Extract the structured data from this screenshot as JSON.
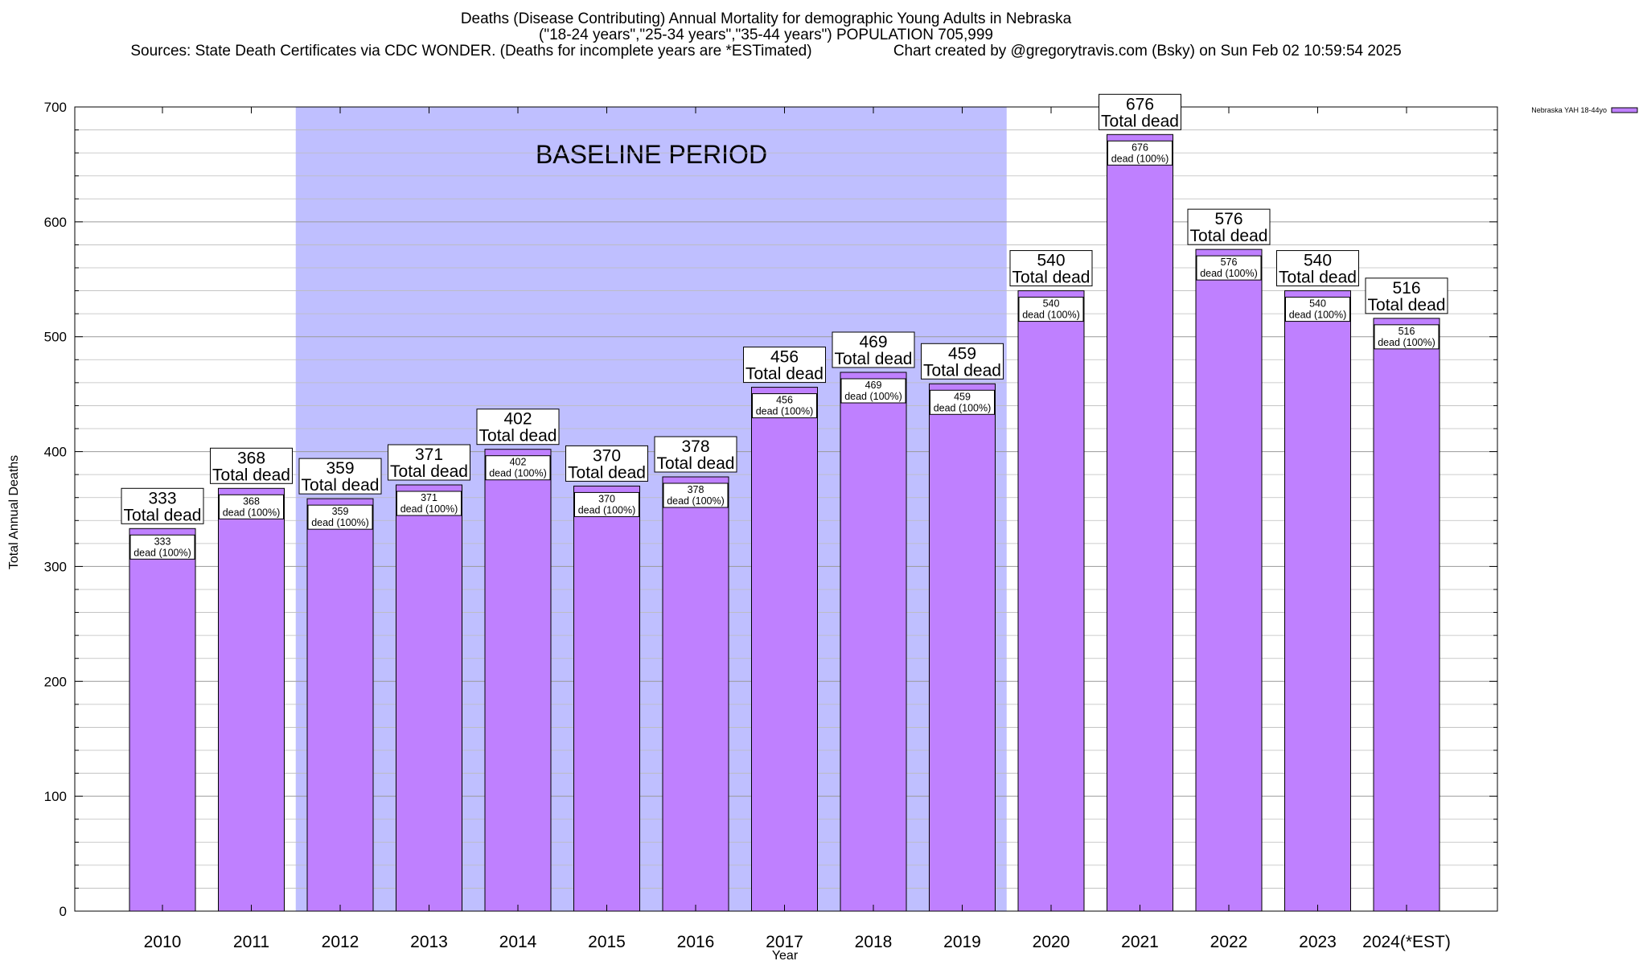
{
  "chart_data": {
    "type": "bar",
    "title": "Deaths (Disease Contributing) Annual Mortality for demographic Young Adults in Nebraska",
    "subtitle": "(\"18-24 years\",\"25-34 years\",\"35-44 years\") POPULATION 705,999",
    "sources": "Sources: State Death Certificates via CDC WONDER. (Deaths for incomplete years are *ESTimated)",
    "credit": "Chart created by @gregorytravis.com (Bsky) on Sun Feb 02 10:59:54 2025",
    "xlabel": "Year",
    "ylabel": "Total Annual Deaths",
    "ylim": [
      0,
      700
    ],
    "yticks": [
      0,
      100,
      200,
      300,
      400,
      500,
      600,
      700
    ],
    "grid": true,
    "legend_position": "top-right",
    "categories": [
      "2010",
      "2011",
      "2012",
      "2013",
      "2014",
      "2015",
      "2016",
      "2017",
      "2018",
      "2019",
      "2020",
      "2021",
      "2022",
      "2023",
      "2024(*EST)"
    ],
    "series": [
      {
        "name": "Nebraska YAH 18-44yo",
        "color": "#bf80ff",
        "values": [
          333,
          368,
          359,
          371,
          402,
          370,
          378,
          456,
          469,
          459,
          540,
          676,
          576,
          540,
          516
        ]
      }
    ],
    "total_label_suffix": "Total dead",
    "bar_label_suffix": "dead (100%)",
    "baseline_period": {
      "label": "BASELINE PERIOD",
      "start_category": "2012",
      "end_category": "2019",
      "color": "#bfbfff"
    }
  }
}
